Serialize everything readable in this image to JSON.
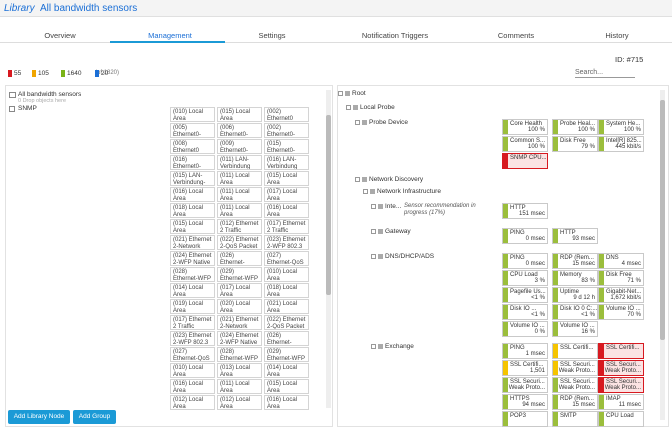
{
  "header": {
    "library": "Library",
    "title": "All bandwidth sensors"
  },
  "tabs": [
    "Overview",
    "Management",
    "Settings",
    "Notification Triggers",
    "Comments",
    "History"
  ],
  "object_id": "ID: #715",
  "search_placeholder": "Search...",
  "status_counts": [
    {
      "label": "55",
      "color": "#d71920"
    },
    {
      "label": "105",
      "color": "#f0a500"
    },
    {
      "label": "1640",
      "color": "#7ab317"
    },
    {
      "label": "20",
      "color": "#1b6fd6"
    }
  ],
  "total": "(of 1820)",
  "library_tree": {
    "root": "All bandwidth sensors",
    "drop_hint": "0 Drop objects here",
    "group": "SNMP"
  },
  "sensor_grid": [
    [
      "(010) Local Area",
      "(015) Local Area",
      "(002) Ethernet0 Traffic"
    ],
    [
      "(005) Ethernet0-WFP Native",
      "(006) Ethernet0-QoS Packet",
      "(002) Ethernet0-WFP 802.3"
    ],
    [
      "(008) Ethernet0 Traffic",
      "(009) Ethernet0-QoS Packet",
      "(015) Ethernet0-QoS Packet"
    ],
    [
      "(016) Ethernet0-WFP 802.3",
      "(011) LAN-Verbindung",
      "(016) LAN-Verbindung"
    ],
    [
      "(015) LAN-Verbindung-Qos",
      "(011) Local Area",
      "(015) Local Area"
    ],
    [
      "(016) Local Area",
      "(011) Local Area",
      "(017) Local Area"
    ],
    [
      "(018) Local Area",
      "(011) Local Area",
      "(016) Local Area"
    ],
    [
      "(015) Local Area",
      "(012) Ethernet 2 Traffic",
      "(017) Ethernet 2 Traffic"
    ],
    [
      "(021) Ethernet 2-Network",
      "(022) Ethernet 2-QoS Packet",
      "(023) Ethernet 2-WFP 802.3"
    ],
    [
      "(024) Ethernet 2-WFP Native",
      "(026) Ethernet-Network",
      "(027) Ethernet-QoS Packet"
    ],
    [
      "(028) Ethernet-WFP 802.3",
      "(029) Ethernet-WFP Native",
      "(010) Local Area"
    ],
    [
      "(014) Local Area",
      "(017) Local Area",
      "(018) Local Area"
    ],
    [
      "(019) Local Area",
      "(020) Local Area",
      "(021) Local Area"
    ],
    [
      "(017) Ethernet 2 Traffic",
      "(021) Ethernet 2-Network",
      "(022) Ethernet 2-QoS Packet"
    ],
    [
      "(023) Ethernet 2-WFP 802.3",
      "(024) Ethernet 2-WFP Native",
      "(026) Ethernet-Network"
    ],
    [
      "(027) Ethernet-QoS Packet",
      "(028) Ethernet-WFP 802.3",
      "(029) Ethernet-WFP Native"
    ],
    [
      "(010) Local Area",
      "(013) Local Area",
      "(014) Local Area"
    ],
    [
      "(016) Local Area",
      "(011) Local Area",
      "(015) Local Area"
    ],
    [
      "(012) Local Area",
      "(012) Local Area",
      "(016) Local Area"
    ]
  ],
  "buttons": [
    "Add Library Node",
    "Add Group"
  ],
  "device_tree": {
    "root": "Root",
    "probe": "Local Probe",
    "discovery": "Network Discovery",
    "infrastructure": "Network Infrastructure",
    "groups": [
      {
        "name": "Probe Device",
        "sensors": [
          {
            "name": "Core Health",
            "value": "100 %",
            "color": "#9bbe3c"
          },
          {
            "name": "Probe Heal...",
            "value": "100 %",
            "color": "#9bbe3c"
          },
          {
            "name": "System He...",
            "value": "100 %",
            "color": "#9bbe3c"
          },
          {
            "name": "Common S...",
            "value": "100 %",
            "color": "#9bbe3c"
          },
          {
            "name": "Disk Free",
            "value": "79 %",
            "color": "#9bbe3c"
          },
          {
            "name": "Intel[R] 825...",
            "value": "445 kbit/s",
            "color": "#9bbe3c"
          },
          {
            "name": "SNMP CPU...",
            "color": "#d71920"
          }
        ]
      },
      {
        "name": "Inte...",
        "note": "Sensor recommendation in progress (17%)",
        "sensors": [
          {
            "name": "HTTP",
            "value": "151 msec",
            "color": "#9bbe3c"
          }
        ]
      },
      {
        "name": "Gateway",
        "sensors": [
          {
            "name": "PING",
            "value": "0 msec",
            "color": "#9bbe3c"
          },
          {
            "name": "HTTP",
            "value": "93 msec",
            "color": "#9bbe3c"
          }
        ]
      },
      {
        "name": "DNS/DHCP/ADS",
        "sensors": [
          {
            "name": "PING",
            "value": "0 msec",
            "color": "#9bbe3c"
          },
          {
            "name": "RDP (Rem...",
            "value": "15 msec",
            "color": "#9bbe3c"
          },
          {
            "name": "DNS",
            "value": "4 msec",
            "color": "#9bbe3c"
          },
          {
            "name": "CPU Load",
            "value": "3 %",
            "color": "#9bbe3c"
          },
          {
            "name": "Memory",
            "value": "83 %",
            "color": "#9bbe3c"
          },
          {
            "name": "Disk Free",
            "value": "71 %",
            "color": "#9bbe3c"
          },
          {
            "name": "Pagefile Us...",
            "value": "<1 %",
            "color": "#9bbe3c"
          },
          {
            "name": "Uptime",
            "value": "9 d 12 h",
            "color": "#9bbe3c"
          },
          {
            "name": "Gigabit-Net...",
            "value": "1,672 kbit/s",
            "color": "#9bbe3c"
          },
          {
            "name": "Disk IO ...",
            "value": "<1 %",
            "color": "#9bbe3c"
          },
          {
            "name": "Disk IO 0 C:...",
            "value": "<1 %",
            "color": "#9bbe3c"
          },
          {
            "name": "Volume IO ...",
            "value": "70 %",
            "color": "#9bbe3c"
          },
          {
            "name": "Volume IO ...",
            "value": "0 %",
            "color": "#9bbe3c"
          },
          {
            "name": "Volume IO ...",
            "value": "16 %",
            "color": "#9bbe3c"
          }
        ]
      },
      {
        "name": "Exchange",
        "sensors": [
          {
            "name": "PING",
            "value": "1 msec",
            "color": "#9bbe3c"
          },
          {
            "name": "SSL Certifi...",
            "color": "#f5c400"
          },
          {
            "name": "SSL Certifi...",
            "color": "#d71920"
          },
          {
            "name": "SSL Certifi...",
            "value": "1,501",
            "color": "#f5c400"
          },
          {
            "name": "SSL Securi...",
            "value": "Weak Proto...",
            "color": "#f5c400"
          },
          {
            "name": "SSL Securi...",
            "value": "Weak Proto...",
            "color": "#d71920"
          },
          {
            "name": "SSL Securi...",
            "value": "Weak Proto...",
            "color": "#9bbe3c"
          },
          {
            "name": "SSL Securi...",
            "value": "Weak Proto...",
            "color": "#9bbe3c"
          },
          {
            "name": "SSL Securi...",
            "value": "Weak Proto...",
            "color": "#d71920"
          },
          {
            "name": "HTTPS",
            "value": "94 msec",
            "color": "#9bbe3c"
          },
          {
            "name": "RDP (Rem...",
            "value": "15 msec",
            "color": "#9bbe3c"
          },
          {
            "name": "IMAP",
            "value": "11 msec",
            "color": "#9bbe3c"
          },
          {
            "name": "POP3",
            "color": "#9bbe3c"
          },
          {
            "name": "SMTP",
            "color": "#9bbe3c"
          },
          {
            "name": "CPU Load",
            "color": "#9bbe3c"
          }
        ]
      }
    ]
  }
}
